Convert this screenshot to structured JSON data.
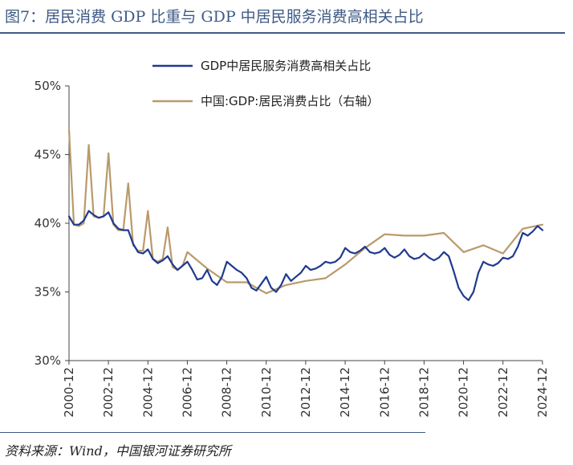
{
  "figure": {
    "title": "图7：居民消费 GDP 比重与 GDP 中居民服务消费高相关占比",
    "source": "资料来源：Wind，中国银河证券研究所"
  },
  "chart_data": {
    "type": "line",
    "ylabel_left": "",
    "ylim_left": [
      30,
      50
    ],
    "yticks_left": [
      "30%",
      "35%",
      "40%",
      "45%",
      "50%"
    ],
    "xticks": [
      "2000-12",
      "2002-12",
      "2004-12",
      "2006-12",
      "2008-12",
      "2010-12",
      "2012-12",
      "2014-12",
      "2016-12",
      "2018-12",
      "2020-12",
      "2022-12",
      "2024-12"
    ],
    "xlim": [
      2000.92,
      2024.92
    ],
    "grid": false,
    "legend_position": "top",
    "series": [
      {
        "name": "GDP中居民服务消费高相关占比",
        "color": "#1f3a8f",
        "x": [
          2000.92,
          2001.17,
          2001.42,
          2001.67,
          2001.92,
          2002.17,
          2002.42,
          2002.67,
          2002.92,
          2003.17,
          2003.42,
          2003.67,
          2003.92,
          2004.17,
          2004.42,
          2004.67,
          2004.92,
          2005.17,
          2005.42,
          2005.67,
          2005.92,
          2006.17,
          2006.42,
          2006.67,
          2006.92,
          2007.17,
          2007.42,
          2007.67,
          2007.92,
          2008.17,
          2008.42,
          2008.67,
          2008.92,
          2009.17,
          2009.42,
          2009.67,
          2009.92,
          2010.17,
          2010.42,
          2010.67,
          2010.92,
          2011.17,
          2011.42,
          2011.67,
          2011.92,
          2012.17,
          2012.42,
          2012.67,
          2012.92,
          2013.17,
          2013.42,
          2013.67,
          2013.92,
          2014.17,
          2014.42,
          2014.67,
          2014.92,
          2015.17,
          2015.42,
          2015.67,
          2015.92,
          2016.17,
          2016.42,
          2016.67,
          2016.92,
          2017.17,
          2017.42,
          2017.67,
          2017.92,
          2018.17,
          2018.42,
          2018.67,
          2018.92,
          2019.17,
          2019.42,
          2019.67,
          2019.92,
          2020.17,
          2020.42,
          2020.67,
          2020.92,
          2021.17,
          2021.42,
          2021.67,
          2021.92,
          2022.17,
          2022.42,
          2022.67,
          2022.92,
          2023.17,
          2023.42,
          2023.67,
          2023.92,
          2024.17,
          2024.42,
          2024.67,
          2024.92
        ],
        "values": [
          40.5,
          39.9,
          39.9,
          40.2,
          40.9,
          40.6,
          40.4,
          40.5,
          40.8,
          40.0,
          39.6,
          39.5,
          39.5,
          38.5,
          37.9,
          37.8,
          38.1,
          37.4,
          37.1,
          37.3,
          37.6,
          37.0,
          36.6,
          36.9,
          37.2,
          36.6,
          35.9,
          36.0,
          36.6,
          35.8,
          35.5,
          36.1,
          37.2,
          36.9,
          36.6,
          36.4,
          36.0,
          35.3,
          35.1,
          35.6,
          36.1,
          35.3,
          35.0,
          35.5,
          36.3,
          35.8,
          36.1,
          36.4,
          36.9,
          36.6,
          36.7,
          36.9,
          37.2,
          37.1,
          37.2,
          37.5,
          38.2,
          37.9,
          37.8,
          38.0,
          38.3,
          37.9,
          37.8,
          37.9,
          38.2,
          37.7,
          37.5,
          37.7,
          38.1,
          37.6,
          37.4,
          37.5,
          37.8,
          37.5,
          37.3,
          37.5,
          37.9,
          37.6,
          36.5,
          35.3,
          34.7,
          34.4,
          35.0,
          36.4,
          37.2,
          37.0,
          36.9,
          37.1,
          37.5,
          37.4,
          37.6,
          38.3,
          39.3,
          39.1,
          39.4,
          39.8,
          39.5
        ]
      },
      {
        "name": "中国:GDP:居民消费占比（右轴）",
        "color": "#b99a6b",
        "x": [
          2000.92,
          2001.17,
          2001.42,
          2001.67,
          2001.92,
          2002.17,
          2002.42,
          2002.67,
          2002.92,
          2003.17,
          2003.42,
          2003.67,
          2003.92,
          2004.17,
          2004.42,
          2004.67,
          2004.92,
          2005.17,
          2005.42,
          2005.67,
          2005.92,
          2006.17,
          2006.42,
          2006.67,
          2006.92,
          2007.92,
          2008.92,
          2009.92,
          2010.92,
          2011.92,
          2012.92,
          2013.92,
          2014.92,
          2015.92,
          2016.92,
          2017.92,
          2018.92,
          2019.92,
          2020.92,
          2021.92,
          2022.92,
          2023.92,
          2024.92
        ],
        "values": [
          46.8,
          39.9,
          39.8,
          40.0,
          45.7,
          40.5,
          40.4,
          40.5,
          45.1,
          39.9,
          39.5,
          39.5,
          42.9,
          38.4,
          38.0,
          38.0,
          40.9,
          37.4,
          37.2,
          37.4,
          39.7,
          36.8,
          36.6,
          36.9,
          37.9,
          36.7,
          35.7,
          35.7,
          34.9,
          35.5,
          35.8,
          36.0,
          37.0,
          38.2,
          39.2,
          39.1,
          39.1,
          39.3,
          37.9,
          38.4,
          37.8,
          39.6,
          39.9
        ]
      }
    ]
  }
}
